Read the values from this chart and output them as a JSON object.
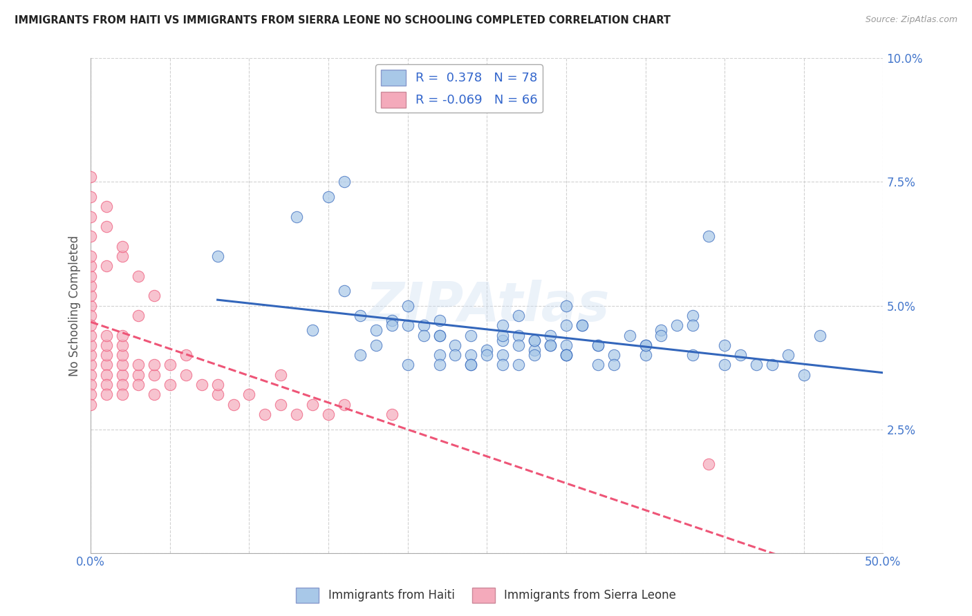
{
  "title": "IMMIGRANTS FROM HAITI VS IMMIGRANTS FROM SIERRA LEONE NO SCHOOLING COMPLETED CORRELATION CHART",
  "source": "Source: ZipAtlas.com",
  "ylabel": "No Schooling Completed",
  "xlim": [
    0.0,
    0.5
  ],
  "ylim": [
    0.0,
    0.1
  ],
  "xticks": [
    0.0,
    0.05,
    0.1,
    0.15,
    0.2,
    0.25,
    0.3,
    0.35,
    0.4,
    0.45,
    0.5
  ],
  "xticklabels": [
    "0.0%",
    "",
    "",
    "",
    "",
    "",
    "",
    "",
    "",
    "",
    "50.0%"
  ],
  "yticks": [
    0.0,
    0.025,
    0.05,
    0.075,
    0.1
  ],
  "yticklabels": [
    "",
    "2.5%",
    "5.0%",
    "7.5%",
    "10.0%"
  ],
  "haiti_R": 0.378,
  "haiti_N": 78,
  "sierra_R": -0.069,
  "sierra_N": 66,
  "haiti_color": "#a8c8e8",
  "sierra_color": "#f4aabb",
  "haiti_line_color": "#3366bb",
  "sierra_line_color": "#ee5577",
  "haiti_scatter_x": [
    0.08,
    0.16,
    0.3,
    0.27,
    0.3,
    0.2,
    0.16,
    0.18,
    0.23,
    0.24,
    0.22,
    0.27,
    0.28,
    0.21,
    0.26,
    0.17,
    0.14,
    0.28,
    0.19,
    0.32,
    0.24,
    0.35,
    0.38,
    0.3,
    0.26,
    0.33,
    0.27,
    0.22,
    0.36,
    0.29,
    0.31,
    0.4,
    0.25,
    0.34,
    0.28,
    0.22,
    0.3,
    0.26,
    0.32,
    0.37,
    0.18,
    0.23,
    0.29,
    0.24,
    0.2,
    0.35,
    0.4,
    0.42,
    0.44,
    0.46,
    0.38,
    0.26,
    0.3,
    0.22,
    0.33,
    0.29,
    0.25,
    0.21,
    0.19,
    0.28,
    0.32,
    0.36,
    0.24,
    0.27,
    0.31,
    0.38,
    0.43,
    0.41,
    0.35,
    0.3,
    0.22,
    0.17,
    0.26,
    0.2,
    0.15,
    0.13,
    0.45,
    0.39
  ],
  "haiti_scatter_y": [
    0.06,
    0.075,
    0.05,
    0.038,
    0.042,
    0.05,
    0.053,
    0.045,
    0.042,
    0.04,
    0.044,
    0.048,
    0.043,
    0.046,
    0.04,
    0.048,
    0.045,
    0.041,
    0.047,
    0.038,
    0.044,
    0.042,
    0.048,
    0.046,
    0.043,
    0.04,
    0.044,
    0.04,
    0.045,
    0.042,
    0.046,
    0.038,
    0.041,
    0.044,
    0.043,
    0.047,
    0.04,
    0.046,
    0.042,
    0.046,
    0.042,
    0.04,
    0.044,
    0.038,
    0.046,
    0.04,
    0.042,
    0.038,
    0.04,
    0.044,
    0.046,
    0.038,
    0.04,
    0.044,
    0.038,
    0.042,
    0.04,
    0.044,
    0.046,
    0.04,
    0.042,
    0.044,
    0.038,
    0.042,
    0.046,
    0.04,
    0.038,
    0.04,
    0.042,
    0.04,
    0.038,
    0.04,
    0.044,
    0.038,
    0.072,
    0.068,
    0.036,
    0.064
  ],
  "sierra_scatter_x": [
    0.0,
    0.0,
    0.0,
    0.0,
    0.0,
    0.0,
    0.0,
    0.0,
    0.0,
    0.0,
    0.0,
    0.0,
    0.0,
    0.0,
    0.0,
    0.0,
    0.01,
    0.01,
    0.01,
    0.01,
    0.01,
    0.01,
    0.01,
    0.02,
    0.02,
    0.02,
    0.02,
    0.02,
    0.02,
    0.03,
    0.03,
    0.03,
    0.04,
    0.04,
    0.05,
    0.05,
    0.06,
    0.07,
    0.08,
    0.09,
    0.1,
    0.11,
    0.12,
    0.13,
    0.14,
    0.15,
    0.06,
    0.04,
    0.02,
    0.08,
    0.12,
    0.16,
    0.19,
    0.39,
    0.01,
    0.01,
    0.02,
    0.03,
    0.04,
    0.03,
    0.02,
    0.01,
    0.0,
    0.0,
    0.0,
    0.0
  ],
  "sierra_scatter_y": [
    0.038,
    0.04,
    0.042,
    0.044,
    0.05,
    0.048,
    0.046,
    0.052,
    0.054,
    0.056,
    0.058,
    0.036,
    0.034,
    0.032,
    0.03,
    0.06,
    0.038,
    0.04,
    0.042,
    0.044,
    0.036,
    0.034,
    0.032,
    0.036,
    0.034,
    0.038,
    0.04,
    0.032,
    0.042,
    0.036,
    0.038,
    0.034,
    0.036,
    0.032,
    0.034,
    0.038,
    0.036,
    0.034,
    0.032,
    0.03,
    0.032,
    0.028,
    0.03,
    0.028,
    0.03,
    0.028,
    0.04,
    0.038,
    0.044,
    0.034,
    0.036,
    0.03,
    0.028,
    0.018,
    0.066,
    0.07,
    0.06,
    0.056,
    0.052,
    0.048,
    0.062,
    0.058,
    0.068,
    0.072,
    0.064,
    0.076
  ]
}
